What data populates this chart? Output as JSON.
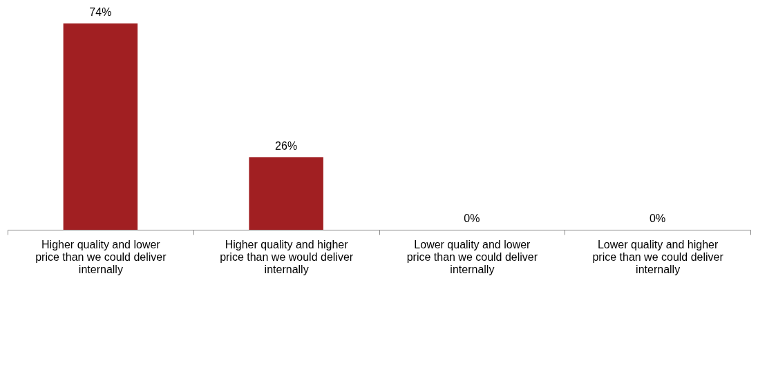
{
  "chart_data": {
    "type": "bar",
    "categories": [
      "Higher quality and lower price than we could deliver internally",
      "Higher quality and higher price than we would deliver internally",
      "Lower quality and lower price than we could deliver internally",
      "Lower quality and higher price than we could deliver internally"
    ],
    "values": [
      74,
      26,
      0,
      0
    ],
    "color": "#a11f22",
    "value_labels": [
      "74%",
      "26%",
      "0%",
      "0%"
    ]
  }
}
